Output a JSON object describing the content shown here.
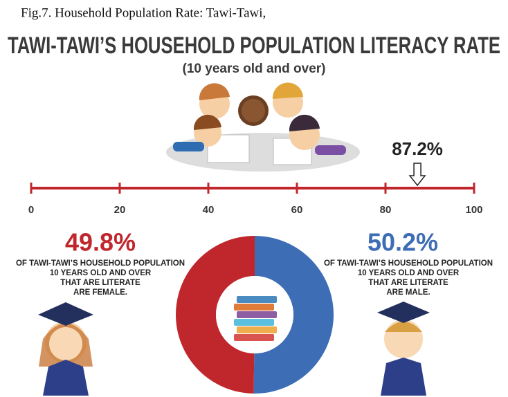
{
  "caption": "Fig.7. Household Population Rate: Tawi-Tawi,",
  "title": "TAWI-TAWI’S HOUSEHOLD POPULATION LITERACY RATE",
  "subtitle": "(10 years old and over)",
  "chart_data": [
    {
      "type": "scale",
      "xlim": [
        0,
        100
      ],
      "xticks": [
        0,
        20,
        40,
        60,
        80,
        100
      ],
      "color": "#c0272d",
      "marker": {
        "value": 87.2,
        "label": "87.2%"
      }
    },
    {
      "type": "pie",
      "values": [
        49.8,
        50.2
      ],
      "value_labels": [
        "49.8%",
        "50.2%"
      ],
      "colors": [
        "#c0272d",
        "#3d6db5"
      ],
      "annotations": [
        [
          "OF TAWI-TAWI’S HOUSEHOLD POPULATION",
          "10 YEARS OLD AND OVER",
          "THAT ARE LITERATE",
          "ARE FEMALE."
        ],
        [
          "OF TAWI-TAWI’S HOUSEHOLD POPULATION",
          "10 YEARS OLD AND OVER",
          "THAT ARE LITERATE",
          "ARE MALE."
        ]
      ]
    }
  ]
}
